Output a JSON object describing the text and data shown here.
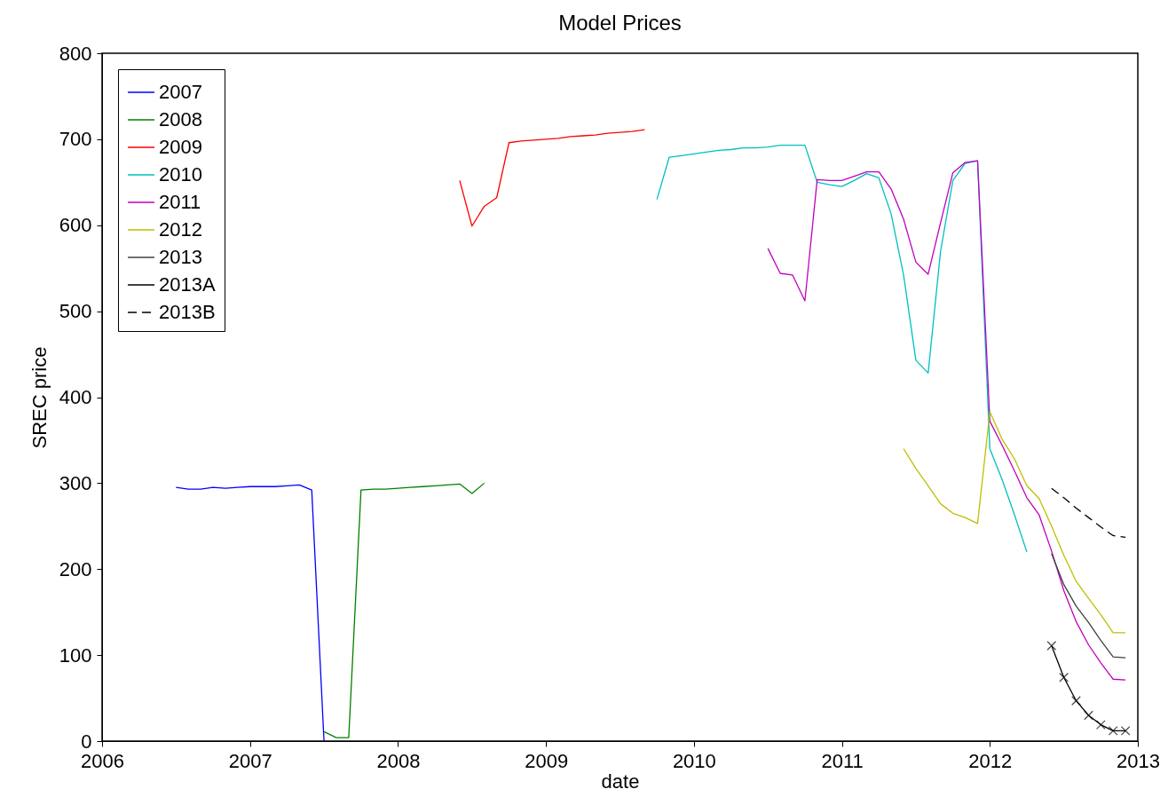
{
  "chart_data": {
    "type": "line",
    "title": "Model Prices",
    "xlabel": "date",
    "ylabel": "SREC price",
    "xlim": [
      2006,
      2013
    ],
    "xticks": [
      2006,
      2007,
      2008,
      2009,
      2010,
      2011,
      2012,
      2013
    ],
    "ylim": [
      0,
      800
    ],
    "yticks": [
      0,
      100,
      200,
      300,
      400,
      500,
      600,
      700,
      800
    ],
    "grid": false,
    "legend": "top left",
    "marker": "none",
    "line_style": "solid",
    "series": [
      {
        "name": "2007",
        "color": "#0000ff",
        "x": [
          2006.5,
          2006.583,
          2006.667,
          2006.75,
          2006.833,
          2006.917,
          2007,
          2007.083,
          2007.167,
          2007.25,
          2007.333,
          2007.417,
          2007.5
        ],
        "values": [
          295,
          293,
          293,
          295,
          294,
          295,
          296,
          296,
          296,
          297,
          298,
          292,
          0
        ]
      },
      {
        "name": "2008",
        "color": "#008000",
        "x": [
          2007.5,
          2007.583,
          2007.667,
          2007.75,
          2007.833,
          2007.917,
          2008,
          2008.083,
          2008.167,
          2008.25,
          2008.333,
          2008.417,
          2008.5,
          2008.583
        ],
        "values": [
          11,
          4,
          4,
          292,
          293,
          293,
          294,
          295,
          296,
          297,
          298,
          299,
          288,
          300
        ]
      },
      {
        "name": "2009",
        "color": "#ff0000",
        "x": [
          2008.417,
          2008.5,
          2008.583,
          2008.667,
          2008.75,
          2008.833,
          2008.917,
          2009,
          2009.083,
          2009.167,
          2009.25,
          2009.333,
          2009.417,
          2009.5,
          2009.583,
          2009.667
        ],
        "values": [
          652,
          599,
          622,
          632,
          696,
          698,
          699,
          700,
          701,
          703,
          704,
          705,
          707,
          708,
          709,
          711
        ]
      },
      {
        "name": "2010",
        "color": "#00bfbf",
        "x": [
          2009.75,
          2009.833,
          2009.917,
          2010,
          2010.083,
          2010.167,
          2010.25,
          2010.333,
          2010.417,
          2010.5,
          2010.583,
          2010.667,
          2010.75,
          2010.833,
          2010.917,
          2011,
          2011.083,
          2011.167,
          2011.25,
          2011.333,
          2011.417,
          2011.5,
          2011.583,
          2011.667,
          2011.75,
          2011.833,
          2011.917,
          2012,
          2012.083,
          2012.167,
          2012.25
        ],
        "values": [
          630,
          679,
          681,
          683,
          685,
          687,
          688,
          690,
          690,
          691,
          693,
          693,
          693,
          650,
          647,
          645,
          652,
          660,
          655,
          613,
          542,
          443,
          428,
          570,
          652,
          672,
          675,
          340,
          304,
          263,
          220
        ]
      },
      {
        "name": "2011",
        "color": "#bf00bf",
        "x": [
          2010.5,
          2010.583,
          2010.667,
          2010.75,
          2010.833,
          2010.917,
          2011,
          2011.083,
          2011.167,
          2011.25,
          2011.333,
          2011.417,
          2011.5,
          2011.583,
          2011.667,
          2011.75,
          2011.833,
          2011.917,
          2012,
          2012.083,
          2012.167,
          2012.25,
          2012.333,
          2012.417,
          2012.5,
          2012.583,
          2012.667,
          2012.75,
          2012.833,
          2012.917
        ],
        "values": [
          573,
          544,
          542,
          512,
          653,
          652,
          652,
          657,
          662,
          662,
          642,
          607,
          557,
          543,
          603,
          661,
          673,
          675,
          372,
          344,
          314,
          283,
          263,
          221,
          175,
          139,
          112,
          91,
          72,
          71
        ]
      },
      {
        "name": "2012",
        "color": "#bfbf00",
        "x": [
          2011.417,
          2011.5,
          2011.583,
          2011.667,
          2011.75,
          2011.833,
          2011.917,
          2012,
          2012.083,
          2012.167,
          2012.25,
          2012.333,
          2012.417,
          2012.5,
          2012.583,
          2012.667,
          2012.75,
          2012.833,
          2012.917
        ],
        "values": [
          340,
          317,
          297,
          276,
          265,
          260,
          253,
          383,
          351,
          328,
          297,
          282,
          250,
          216,
          186,
          166,
          147,
          126,
          126
        ]
      },
      {
        "name": "2013",
        "color": "#404040",
        "x": [
          2012.417,
          2012.5,
          2012.583,
          2012.667,
          2012.75,
          2012.833,
          2012.917
        ],
        "values": [
          218,
          182,
          157,
          138,
          117,
          98,
          97
        ]
      },
      {
        "name": "2013A",
        "color": "#000000",
        "marker": "cross",
        "x": [
          2012.417,
          2012.5,
          2012.583,
          2012.667,
          2012.75,
          2012.833,
          2012.917
        ],
        "values": [
          111,
          74,
          47,
          30,
          19,
          12,
          12
        ]
      },
      {
        "name": "2013B",
        "color": "#000000",
        "line_style": "dashed",
        "x": [
          2012.417,
          2012.5,
          2012.583,
          2012.667,
          2012.75,
          2012.833,
          2012.917
        ],
        "values": [
          294,
          283,
          271,
          260,
          249,
          239,
          237
        ]
      }
    ]
  }
}
